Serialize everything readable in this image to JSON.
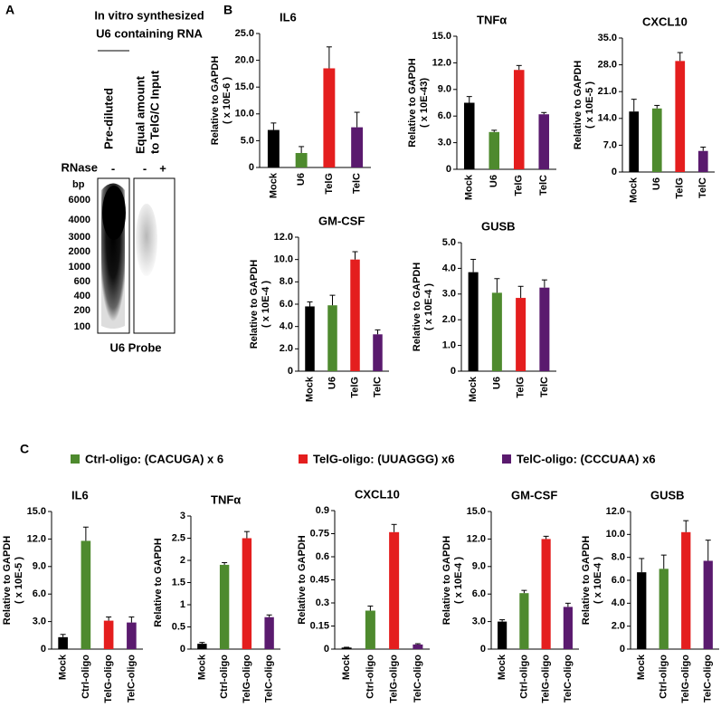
{
  "panel_a": {
    "letter": "A",
    "title": [
      "In vitro synthesized",
      "U6 containing RNA"
    ],
    "lanes": [
      "Pre-diluted",
      "Equal amount",
      "to TelG/C Input"
    ],
    "rnase": "RNase",
    "rnase_marks": [
      "-",
      "-",
      "+"
    ],
    "bp": "bp",
    "markers": [
      "6000",
      "4000",
      "3000",
      "2000",
      "1000",
      "600",
      "400",
      "200",
      "100"
    ],
    "probe": "U6 Probe"
  },
  "panel_b": {
    "letter": "B"
  },
  "panel_c": {
    "letter": "C",
    "legend": [
      {
        "label": "Ctrl-oligo: (CACUGA) x 6",
        "color": "#4e8a2e"
      },
      {
        "label": "TelG-oligo: (UUAGGG) x6",
        "color": "#e41e1e"
      },
      {
        "label": "TelC-oligo: (CCCUAA) x6",
        "color": "#5a1a6e"
      }
    ]
  },
  "chart_data": [
    {
      "type": "bar",
      "title": "IL6",
      "ylabel": [
        "Relative to GAPDH",
        "( x 10E-6 )"
      ],
      "categories": [
        "Mock",
        "U6",
        "TelG",
        "TelC"
      ],
      "values": [
        7.0,
        2.7,
        18.5,
        7.5
      ],
      "errors": [
        1.3,
        1.2,
        4.0,
        2.8
      ],
      "colors": [
        "#000000",
        "#4e8a2e",
        "#e41e1e",
        "#5a1a6e"
      ],
      "ylim": [
        0,
        25
      ],
      "yticks": [
        0,
        {
          "value": 5,
          "label": "5.0"
        },
        {
          "value": 10,
          "label": "10.0"
        },
        {
          "value": 15,
          "label": "15.0"
        },
        {
          "value": 20,
          "label": "20.0"
        },
        {
          "value": 25,
          "label": "25.0"
        }
      ]
    },
    {
      "type": "bar",
      "title": "TNFα",
      "ylabel": [
        "Relative to GAPDH",
        "( x 10E-43)"
      ],
      "categories": [
        "Mock",
        "U6",
        "TelG",
        "TelC"
      ],
      "values": [
        7.5,
        4.2,
        11.2,
        6.2
      ],
      "errors": [
        0.7,
        0.2,
        0.5,
        0.2
      ],
      "colors": [
        "#000000",
        "#4e8a2e",
        "#e41e1e",
        "#5a1a6e"
      ],
      "ylim": [
        0,
        15
      ],
      "yticks": [
        0,
        {
          "value": 3,
          "label": "3.0"
        },
        {
          "value": 6,
          "label": "6.0"
        },
        {
          "value": 9,
          "label": "9.0"
        },
        {
          "value": 12,
          "label": "12.0"
        },
        {
          "value": 15,
          "label": "15.0"
        }
      ]
    },
    {
      "type": "bar",
      "title": "CXCL10",
      "ylabel": [
        "Relative to GAPDH",
        "( x 10E-5 )"
      ],
      "categories": [
        "Mock",
        "U6",
        "TelG",
        "TelC"
      ],
      "values": [
        15.8,
        16.6,
        29.0,
        5.5
      ],
      "errors": [
        3.2,
        0.8,
        2.2,
        1.0
      ],
      "colors": [
        "#000000",
        "#4e8a2e",
        "#e41e1e",
        "#5a1a6e"
      ],
      "ylim": [
        0,
        35
      ],
      "yticks": [
        0,
        {
          "value": 7,
          "label": "7.0"
        },
        {
          "value": 14,
          "label": "14.0"
        },
        {
          "value": 21,
          "label": "21.0"
        },
        {
          "value": 28,
          "label": "28.0"
        },
        {
          "value": 35,
          "label": "35.0"
        }
      ]
    },
    {
      "type": "bar",
      "title": "GM-CSF",
      "ylabel": [
        "Relative to GAPDH",
        "( x 10E-4 )"
      ],
      "categories": [
        "Mock",
        "U6",
        "TelG",
        "TelC"
      ],
      "values": [
        5.8,
        5.9,
        10.0,
        3.3
      ],
      "errors": [
        0.4,
        0.9,
        0.7,
        0.4
      ],
      "colors": [
        "#000000",
        "#4e8a2e",
        "#e41e1e",
        "#5a1a6e"
      ],
      "ylim": [
        0,
        12
      ],
      "yticks": [
        0,
        {
          "value": 2,
          "label": "2.0"
        },
        {
          "value": 4,
          "label": "4.0"
        },
        {
          "value": 6,
          "label": "6.0"
        },
        {
          "value": 8,
          "label": "8.0"
        },
        {
          "value": 10,
          "label": "10.0"
        },
        {
          "value": 12,
          "label": "12.0"
        }
      ]
    },
    {
      "type": "bar",
      "title": "GUSB",
      "ylabel": [
        "Relative to GAPDH",
        "( x 10E-4 )"
      ],
      "categories": [
        "Mock",
        "U6",
        "TelG",
        "TelC"
      ],
      "values": [
        3.85,
        3.05,
        2.85,
        3.25
      ],
      "errors": [
        0.5,
        0.55,
        0.45,
        0.3
      ],
      "colors": [
        "#000000",
        "#4e8a2e",
        "#e41e1e",
        "#5a1a6e"
      ],
      "ylim": [
        0,
        5
      ],
      "yticks": [
        0,
        {
          "value": 1,
          "label": "1.0"
        },
        {
          "value": 2,
          "label": "2.0"
        },
        {
          "value": 3,
          "label": "3.0"
        },
        {
          "value": 4,
          "label": "4.0"
        },
        {
          "value": 5,
          "label": "5.0"
        }
      ]
    },
    {
      "type": "bar",
      "title": "IL6",
      "ylabel": [
        "Relative to GAPDH",
        "( x 10E-5 )"
      ],
      "categories": [
        "Mock",
        "Ctrl-oligo",
        "TelG-oligo",
        "TelC-oligo"
      ],
      "values": [
        1.3,
        11.8,
        3.1,
        2.9
      ],
      "errors": [
        0.3,
        1.5,
        0.4,
        0.6
      ],
      "colors": [
        "#000000",
        "#4e8a2e",
        "#e41e1e",
        "#5a1a6e"
      ],
      "ylim": [
        0,
        15
      ],
      "yticks": [
        0,
        {
          "value": 3,
          "label": "3.0"
        },
        {
          "value": 6,
          "label": "6.0"
        },
        {
          "value": 9,
          "label": "9.0"
        },
        {
          "value": 12,
          "label": "12.0"
        },
        {
          "value": 15,
          "label": "15.0"
        }
      ]
    },
    {
      "type": "bar",
      "title": "TNFα",
      "ylabel": [
        "Relative to GAPDH"
      ],
      "categories": [
        "Mock",
        "Ctrl-oligo",
        "TelG-oligo",
        "TelC-oligo"
      ],
      "values": [
        0.12,
        1.9,
        2.5,
        0.72
      ],
      "errors": [
        0.03,
        0.05,
        0.15,
        0.05
      ],
      "colors": [
        "#000000",
        "#4e8a2e",
        "#e41e1e",
        "#5a1a6e"
      ],
      "ylim": [
        0,
        3
      ],
      "yticks": [
        0,
        0.5,
        1,
        1.5,
        2,
        2.5,
        3
      ]
    },
    {
      "type": "bar",
      "title": "CXCL10",
      "ylabel": [
        "Relative to GAPDH"
      ],
      "categories": [
        "Mock",
        "Ctrl-oligo",
        "TelG-oligo",
        "TelC-oligo"
      ],
      "values": [
        0.01,
        0.25,
        0.76,
        0.03
      ],
      "errors": [
        0.002,
        0.03,
        0.05,
        0.005
      ],
      "colors": [
        "#000000",
        "#4e8a2e",
        "#e41e1e",
        "#5a1a6e"
      ],
      "ylim": [
        0,
        0.9
      ],
      "yticks": [
        0,
        0.15,
        0.3,
        0.45,
        0.6,
        0.75,
        0.9
      ]
    },
    {
      "type": "bar",
      "title": "GM-CSF",
      "ylabel": [
        "Relative to GAPDH",
        "( x 10E-4 )"
      ],
      "categories": [
        "Mock",
        "Ctrl-oligo",
        "TelG-oligo",
        "TelC-oligo"
      ],
      "values": [
        3.0,
        6.1,
        12.0,
        4.6
      ],
      "errors": [
        0.2,
        0.3,
        0.3,
        0.4
      ],
      "colors": [
        "#000000",
        "#4e8a2e",
        "#e41e1e",
        "#5a1a6e"
      ],
      "ylim": [
        0,
        15
      ],
      "yticks": [
        0,
        {
          "value": 3,
          "label": "3.0"
        },
        {
          "value": 6,
          "label": "6.0"
        },
        {
          "value": 9,
          "label": "9.0"
        },
        {
          "value": 12,
          "label": "12.0"
        },
        {
          "value": 15,
          "label": "15.0"
        }
      ]
    },
    {
      "type": "bar",
      "title": "GUSB",
      "ylabel": [
        "Relative to GAPDH",
        "( x 10E-4 )"
      ],
      "categories": [
        "Mock",
        "Ctrl-oligo",
        "TelG-oligo",
        "TelC-oligo"
      ],
      "values": [
        6.7,
        7.0,
        10.2,
        7.7
      ],
      "errors": [
        1.2,
        1.2,
        1.0,
        1.8
      ],
      "colors": [
        "#000000",
        "#4e8a2e",
        "#e41e1e",
        "#5a1a6e"
      ],
      "ylim": [
        0,
        12
      ],
      "yticks": [
        0,
        {
          "value": 2,
          "label": "2.0"
        },
        {
          "value": 4,
          "label": "4.0"
        },
        {
          "value": 6,
          "label": "6.0"
        },
        {
          "value": 8,
          "label": "8.0"
        },
        {
          "value": 10,
          "label": "10.0"
        },
        {
          "value": 12,
          "label": "12.0"
        }
      ]
    }
  ]
}
